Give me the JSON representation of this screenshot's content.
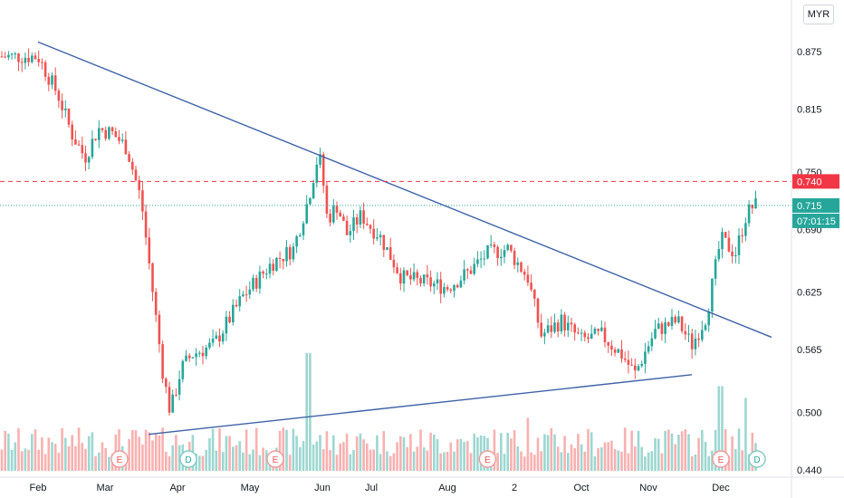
{
  "currency": "MYR",
  "colors": {
    "up": "#26a69a",
    "down": "#ef5350",
    "trendline": "#3d62a8",
    "resistance": "#f23645",
    "last_price": "#26a69a",
    "axis_text": "#131722"
  },
  "price_tags": {
    "resistance": "0.740",
    "last": "0.715",
    "countdown": "07:01:15"
  },
  "event_markers": [
    {
      "label": "E",
      "month_index": 1.2
    },
    {
      "label": "D",
      "month_index": 2.15
    },
    {
      "label": "E",
      "month_index": 3.35
    },
    {
      "label": "E",
      "month_index": 6.6
    },
    {
      "label": "E",
      "month_index": 10.0
    },
    {
      "label": "D",
      "month_index": 10.5
    }
  ],
  "chart_data": {
    "type": "candlestick",
    "x_ticks": [
      "Feb",
      "Mar",
      "Apr",
      "May",
      "Jun",
      "Jul",
      "Aug",
      "2",
      "Oct",
      "Nov",
      "Dec"
    ],
    "y_ticks": [
      "0.875",
      "0.815",
      "0.750",
      "0.690",
      "0.625",
      "0.565",
      "0.500",
      "0.440"
    ],
    "ylim": [
      0.44,
      0.9
    ],
    "resistance_level": 0.74,
    "last_price": 0.715,
    "trendlines": [
      {
        "name": "upper",
        "from": [
          0.0,
          0.885
        ],
        "to": [
          10.7,
          0.578
        ]
      },
      {
        "name": "lower",
        "from": [
          1.6,
          0.477
        ],
        "to": [
          9.6,
          0.539
        ]
      }
    ],
    "path_points": [
      [
        0.0,
        0.87
      ],
      [
        0.3,
        0.83
      ],
      [
        0.5,
        0.79
      ],
      [
        0.7,
        0.765
      ],
      [
        0.9,
        0.795
      ],
      [
        1.1,
        0.79
      ],
      [
        1.3,
        0.775
      ],
      [
        1.5,
        0.72
      ],
      [
        1.65,
        0.63
      ],
      [
        1.8,
        0.54
      ],
      [
        1.9,
        0.5
      ],
      [
        2.05,
        0.545
      ],
      [
        2.2,
        0.56
      ],
      [
        2.5,
        0.57
      ],
      [
        2.9,
        0.62
      ],
      [
        3.3,
        0.655
      ],
      [
        3.6,
        0.67
      ],
      [
        3.8,
        0.72
      ],
      [
        3.95,
        0.77
      ],
      [
        4.1,
        0.7
      ],
      [
        4.3,
        0.715
      ],
      [
        4.5,
        0.685
      ],
      [
        4.8,
        0.705
      ],
      [
        5.1,
        0.685
      ],
      [
        5.4,
        0.64
      ],
      [
        5.7,
        0.635
      ],
      [
        6.0,
        0.63
      ],
      [
        6.3,
        0.645
      ],
      [
        6.6,
        0.665
      ],
      [
        6.9,
        0.67
      ],
      [
        7.2,
        0.64
      ],
      [
        7.4,
        0.58
      ],
      [
        7.7,
        0.595
      ],
      [
        8.0,
        0.575
      ],
      [
        8.3,
        0.58
      ],
      [
        8.6,
        0.56
      ],
      [
        8.8,
        0.54
      ],
      [
        9.1,
        0.585
      ],
      [
        9.4,
        0.595
      ],
      [
        9.6,
        0.57
      ],
      [
        9.8,
        0.6
      ],
      [
        10.0,
        0.68
      ],
      [
        10.2,
        0.665
      ],
      [
        10.35,
        0.705
      ],
      [
        10.45,
        0.715
      ]
    ],
    "volume_spikes": [
      {
        "x": 3.8,
        "v": 1.0
      },
      {
        "x": 7.2,
        "v": 0.45
      },
      {
        "x": 10.0,
        "v": 0.72
      },
      {
        "x": 10.35,
        "v": 0.62
      }
    ]
  }
}
